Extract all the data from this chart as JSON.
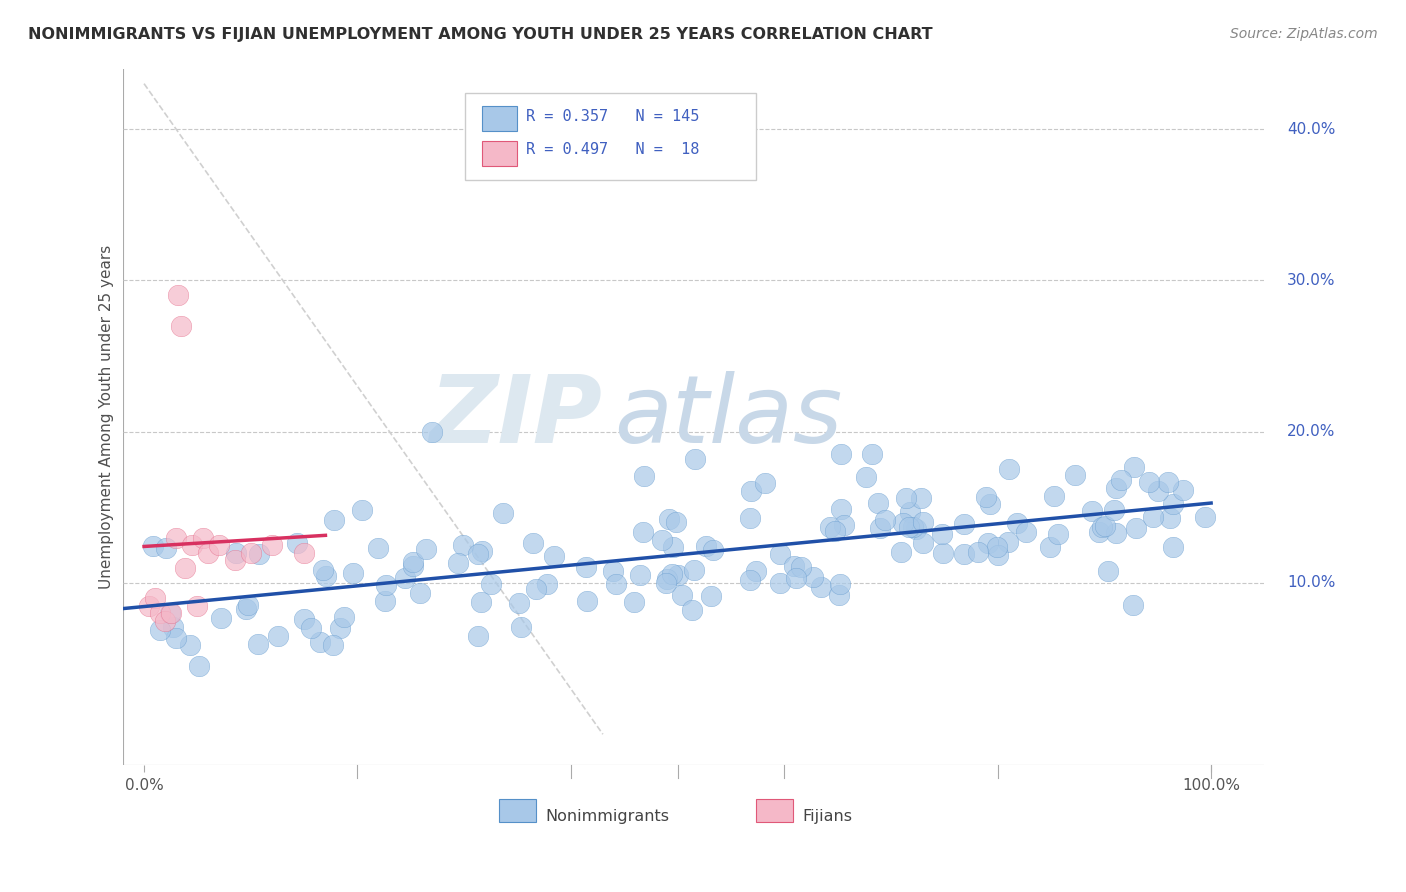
{
  "title": "NONIMMIGRANTS VS FIJIAN UNEMPLOYMENT AMONG YOUTH UNDER 25 YEARS CORRELATION CHART",
  "source": "Source: ZipAtlas.com",
  "ylabel": "Unemployment Among Youth under 25 years",
  "ytick_labels": [
    "10.0%",
    "20.0%",
    "30.0%",
    "40.0%"
  ],
  "ytick_vals": [
    0.1,
    0.2,
    0.3,
    0.4
  ],
  "xtick_labels": [
    "0.0%",
    "100.0%"
  ],
  "xtick_vals": [
    0.0,
    1.0
  ],
  "xlim": [
    -0.02,
    1.05
  ],
  "ylim": [
    -0.02,
    0.44
  ],
  "watermark_zip": "ZIP",
  "watermark_atlas": "atlas",
  "blue_face": "#a8c8e8",
  "blue_edge": "#5590c8",
  "pink_face": "#f5b8c8",
  "pink_edge": "#e05878",
  "line_blue": "#2050a8",
  "line_pink": "#d83060",
  "diag_color": "#d0d0d0",
  "title_color": "#303030",
  "source_color": "#888888",
  "legend_text_color": "#4060c0",
  "grid_color": "#c8c8c8",
  "right_tick_color": "#4060c0",
  "ylabel_color": "#505050"
}
